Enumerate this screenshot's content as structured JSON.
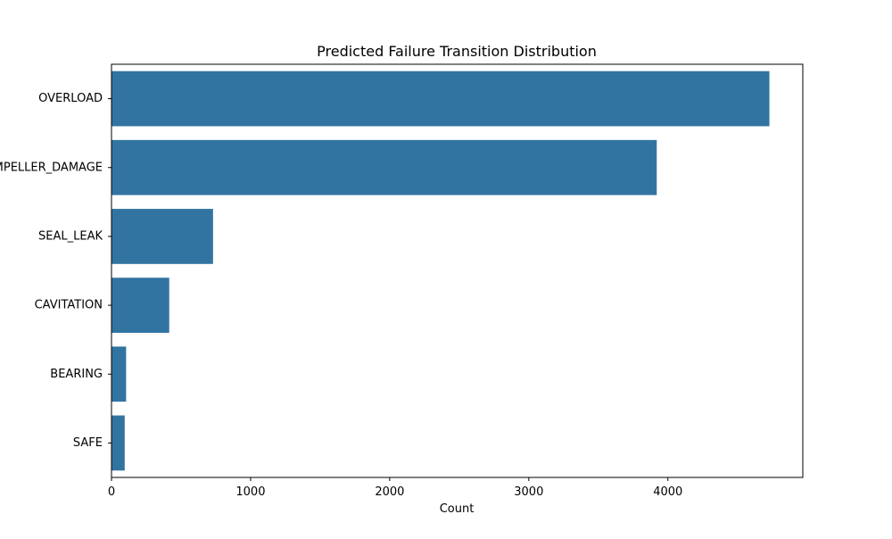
{
  "chart_data": {
    "type": "bar",
    "orientation": "horizontal",
    "title": "Predicted Failure Transition Distribution",
    "xlabel": "Count",
    "ylabel": "",
    "categories": [
      "OVERLOAD",
      "IMPELLER_DAMAGE",
      "SEAL_LEAK",
      "CAVITATION",
      "BEARING",
      "SAFE"
    ],
    "values": [
      4730,
      3920,
      730,
      415,
      105,
      95
    ],
    "xlim": [
      0,
      4970
    ],
    "xticks": [
      0,
      1000,
      2000,
      3000,
      4000
    ],
    "grid": false,
    "bar_color": "#3274a1"
  }
}
